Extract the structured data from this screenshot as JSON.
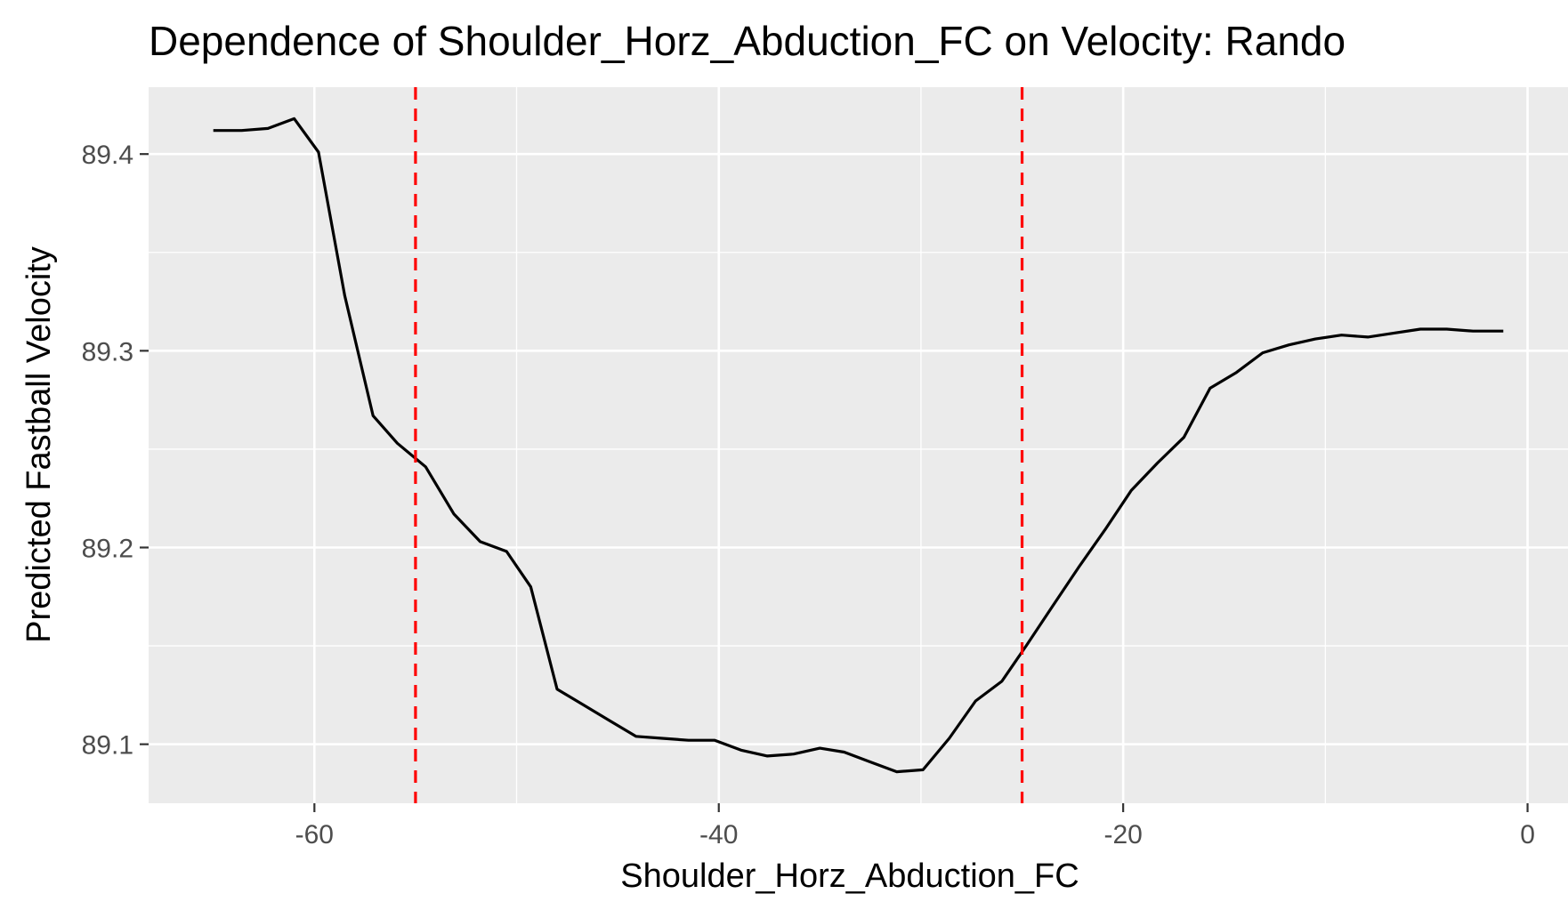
{
  "chart_data": {
    "type": "line",
    "title": "Dependence of Shoulder_Horz_Abduction_FC on Velocity: Rando",
    "xlabel": "Shoulder_Horz_Abduction_FC",
    "ylabel": "Predicted Fastball Velocity",
    "xlim": [
      -68.2,
      2.0
    ],
    "ylim": [
      89.07,
      89.434
    ],
    "x_ticks": [
      -60,
      -40,
      -20,
      0
    ],
    "x_tick_labels": [
      "-60",
      "-40",
      "-20",
      "0"
    ],
    "y_ticks": [
      89.1,
      89.2,
      89.3,
      89.4
    ],
    "y_tick_labels": [
      "89.1",
      "89.2",
      "89.3",
      "89.4"
    ],
    "grid": true,
    "colors": {
      "panel": "#ebebeb",
      "grid": "#ffffff",
      "line": "#000000",
      "reference": "#ff0000"
    },
    "series": [
      {
        "x": [
          -65.0,
          -63.6,
          -62.3,
          -61.0,
          -59.8,
          -58.5,
          -57.1,
          -55.9,
          -54.5,
          -53.1,
          -51.8,
          -50.5,
          -49.3,
          -48.0,
          -46.7,
          -45.4,
          -44.1,
          -42.8,
          -41.5,
          -40.2,
          -38.9,
          -37.6,
          -36.3,
          -35.0,
          -33.8,
          -32.5,
          -31.2,
          -29.9,
          -28.6,
          -27.3,
          -26.0,
          -24.8,
          -23.5,
          -22.2,
          -20.9,
          -19.6,
          -18.3,
          -17.0,
          -15.7,
          -14.4,
          -13.1,
          -11.8,
          -10.5,
          -9.2,
          -7.9,
          -6.6,
          -5.3,
          -4.0,
          -2.7,
          -1.2
        ],
        "y": [
          89.412,
          89.412,
          89.413,
          89.418,
          89.401,
          89.328,
          89.267,
          89.253,
          89.241,
          89.217,
          89.203,
          89.198,
          89.18,
          89.128,
          89.12,
          89.112,
          89.104,
          89.103,
          89.102,
          89.102,
          89.097,
          89.094,
          89.095,
          89.098,
          89.096,
          89.091,
          89.086,
          89.087,
          89.103,
          89.122,
          89.132,
          89.15,
          89.17,
          89.19,
          89.209,
          89.229,
          89.243,
          89.256,
          89.281,
          89.289,
          89.299,
          89.303,
          89.306,
          89.308,
          89.307,
          89.309,
          89.311,
          89.311,
          89.31,
          89.31
        ]
      }
    ],
    "reference_lines": [
      {
        "orientation": "vertical",
        "x": -55.0,
        "style": "dashed"
      },
      {
        "orientation": "vertical",
        "x": -25.0,
        "style": "dashed"
      }
    ]
  }
}
